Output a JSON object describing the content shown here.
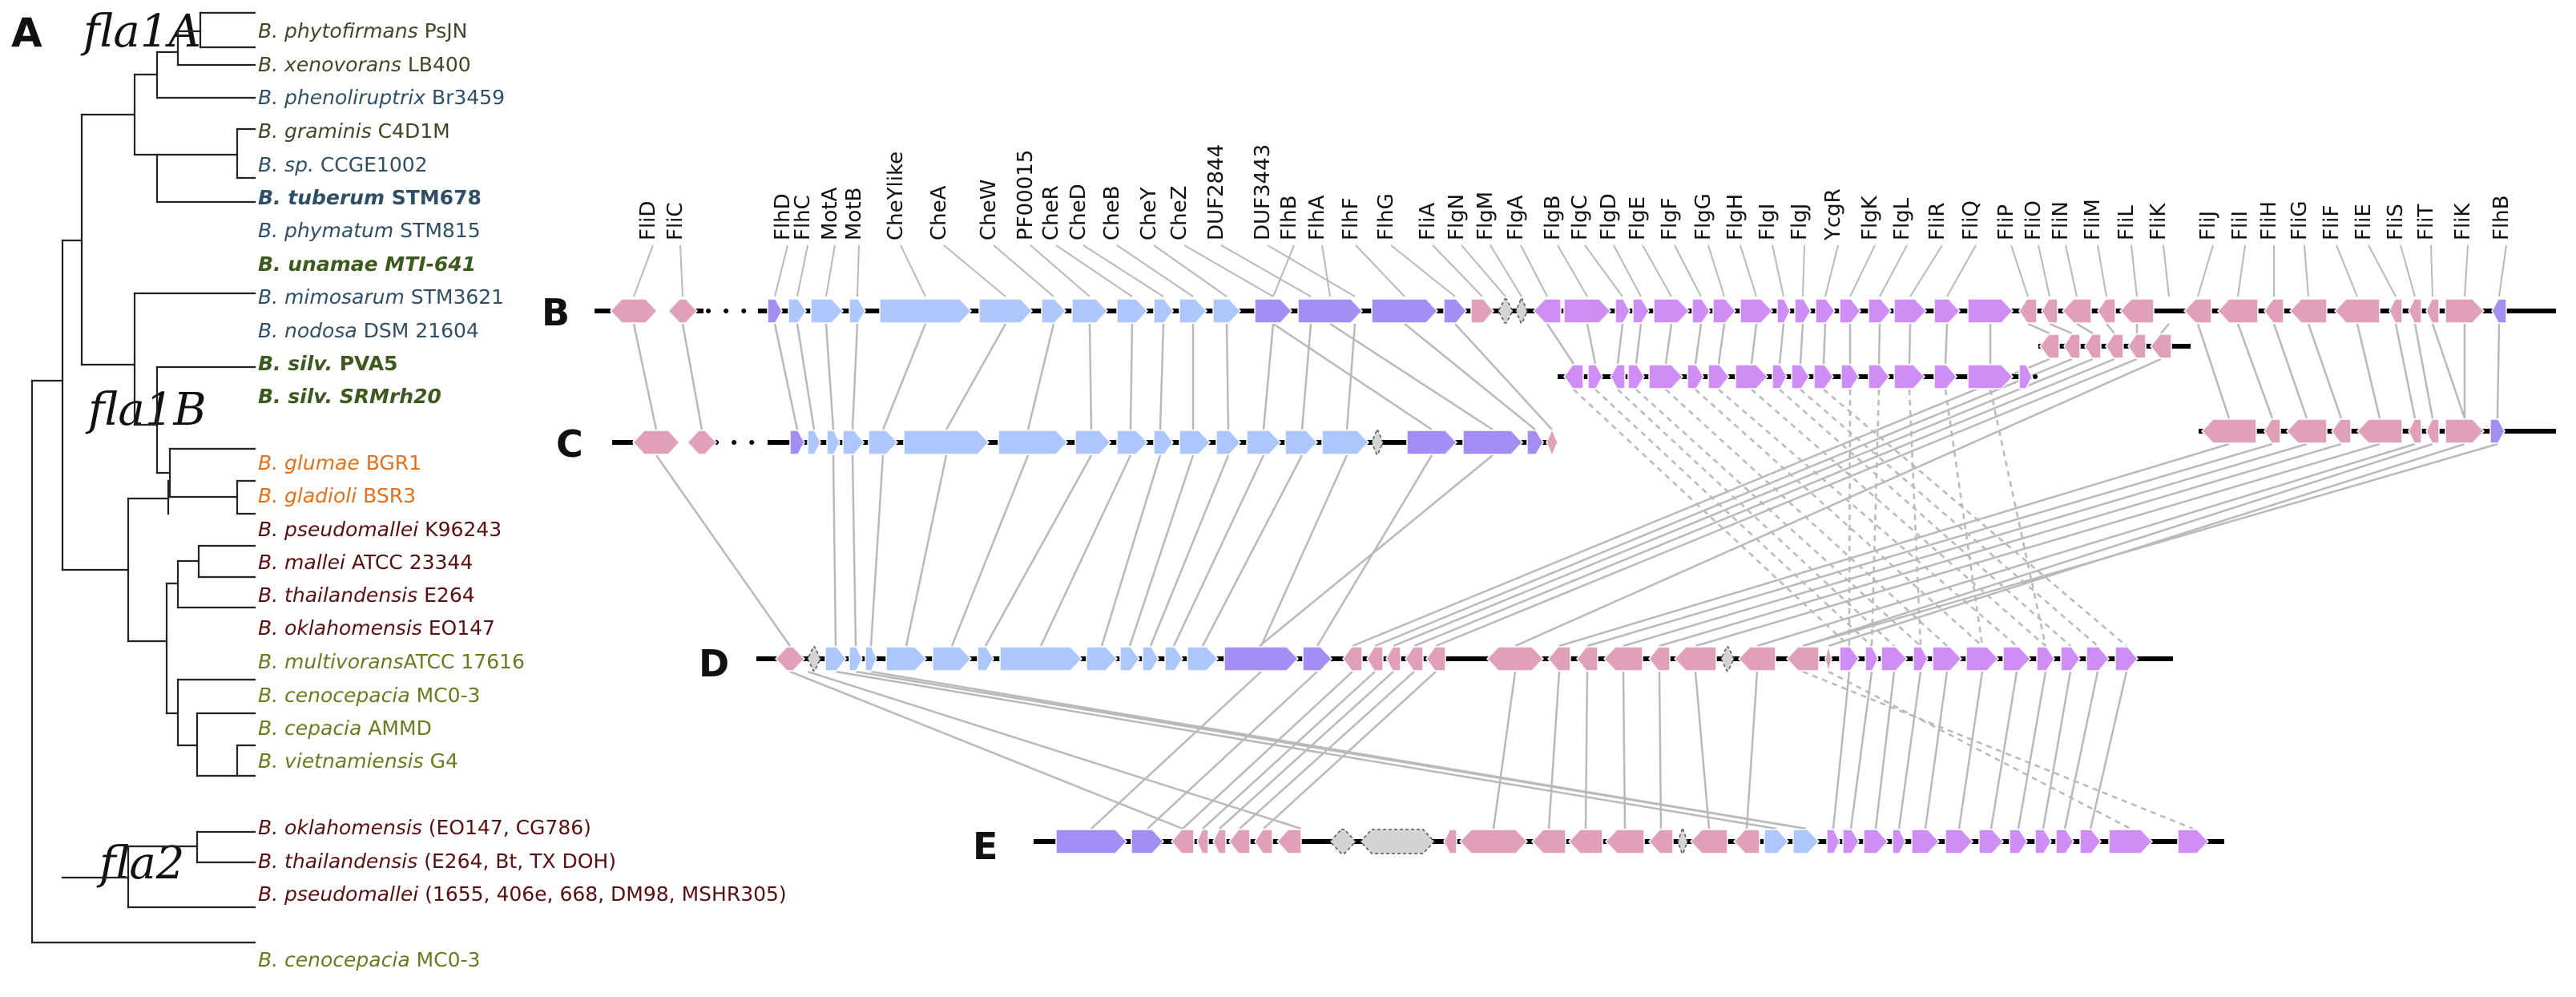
{
  "panel_a": {
    "letter": "A",
    "groups": [
      {
        "id": "fla1A",
        "label": "fla1A"
      },
      {
        "id": "fla1B",
        "label": "fla1B"
      },
      {
        "id": "fla2",
        "label": "fla2"
      }
    ],
    "taxa": [
      {
        "sp": "B. phytofirmans",
        "rest": " PsJN",
        "color": "#3b4a24",
        "bold": false
      },
      {
        "sp": "B. xenovorans",
        "rest": " LB400",
        "color": "#3b4a24",
        "bold": false
      },
      {
        "sp": "B. phenoliruptrix",
        "rest": " Br3459",
        "color": "#2f4f66",
        "bold": false
      },
      {
        "sp": "B. graminis",
        "rest": " C4D1M",
        "color": "#3b4a24",
        "bold": false
      },
      {
        "sp": "B. sp.",
        "rest": " CCGE1002",
        "color": "#2f4f66",
        "bold": false
      },
      {
        "sp": "B. tuberum",
        "rest": " STM678",
        "color": "#2f4f66",
        "bold": true
      },
      {
        "sp": "B. phymatum",
        "rest": " STM815",
        "color": "#2f4f66",
        "bold": false
      },
      {
        "sp": "B. unamae MTI-641",
        "rest": "",
        "color": "#3d5a1e",
        "bold": true
      },
      {
        "sp": "B. mimosarum",
        "rest": " STM3621",
        "color": "#2f4f66",
        "bold": false
      },
      {
        "sp": "B. nodosa",
        "rest": " DSM 21604",
        "color": "#2f4f66",
        "bold": false
      },
      {
        "sp": "B. silv.",
        "rest": " PVA5",
        "color": "#3d5a1e",
        "bold": true
      },
      {
        "sp": "B. silv. SRMrh20",
        "rest": "",
        "color": "#3d5a1e",
        "bold": true
      },
      {
        "sp": "B. glumae",
        "rest": " BGR1",
        "color": "#e0701a",
        "bold": false
      },
      {
        "sp": "B. gladioli",
        "rest": " BSR3",
        "color": "#e0701a",
        "bold": false
      },
      {
        "sp": "B. pseudomallei",
        "rest": " K96243",
        "color": "#5a1010",
        "bold": false
      },
      {
        "sp": "B. mallei",
        "rest": " ATCC 23344",
        "color": "#5a1010",
        "bold": false
      },
      {
        "sp": "B. thailandensis",
        "rest": " E264",
        "color": "#5a1010",
        "bold": false
      },
      {
        "sp": "B. oklahomensis",
        "rest": " EO147",
        "color": "#5a1010",
        "bold": false
      },
      {
        "sp": "B. multivorans",
        "rest": "ATCC 17616",
        "color": "#6b7a1f",
        "bold": false
      },
      {
        "sp": "B. cenocepacia",
        "rest": " MC0-3",
        "color": "#6b7a1f",
        "bold": false
      },
      {
        "sp": "B. cepacia",
        "rest": " AMMD",
        "color": "#6b7a1f",
        "bold": false
      },
      {
        "sp": "B. vietnamiensis",
        "rest": " G4",
        "color": "#6b7a1f",
        "bold": false
      },
      {
        "sp": "B. oklahomensis",
        "rest": " (EO147, CG786)",
        "color": "#5a1010",
        "bold": false
      },
      {
        "sp": "B. thailandensis",
        "rest": " (E264, Bt, TX DOH)",
        "color": "#5a1010",
        "bold": false
      },
      {
        "sp": "B. pseudomallei",
        "rest": " (1655, 406e, 668, DM98, MSHR305)",
        "color": "#5a1010",
        "bold": false
      },
      {
        "sp": "B. cenocepacia",
        "rest": " MC0-3",
        "color": "#6b7a1f",
        "bold": false
      }
    ]
  },
  "panels": {
    "B": {
      "letter": "B"
    },
    "C": {
      "letter": "C"
    },
    "D": {
      "letter": "D"
    },
    "E": {
      "letter": "E"
    }
  },
  "colors": {
    "blue": "#adc6fb",
    "purple": "#a48df3",
    "violet": "#cf8ef5",
    "pink": "#e0a0ba",
    "gray": "#d4d4d4"
  },
  "gene_labels": [
    "FliD",
    "FliC",
    "FlhD",
    "FlhC",
    "MotA",
    "MotB",
    "CheYlike",
    "CheA",
    "CheW",
    "PF00015",
    "CheR",
    "CheD",
    "CheB",
    "CheY",
    "CheZ",
    "DUF2844",
    "DUF3443",
    "FlhB",
    "FlhA",
    "FlhF",
    "FlhG",
    "FliA",
    "FlgN",
    "FlgM",
    "FlgA",
    "FlgB",
    "FlgC",
    "FlgD",
    "FlgE",
    "FlgF",
    "FlgG",
    "FlgH",
    "FlgI",
    "FlgJ",
    "YcgR",
    "FlgK",
    "FlgL",
    "FliR",
    "FliQ",
    "FliP",
    "FliO",
    "FliN",
    "FliM",
    "FliL",
    "FliK",
    "FliJ",
    "FliI",
    "FliH",
    "FliG",
    "FliF",
    "FliE",
    "FliS",
    "FliT",
    "FliK",
    "FlhB"
  ]
}
